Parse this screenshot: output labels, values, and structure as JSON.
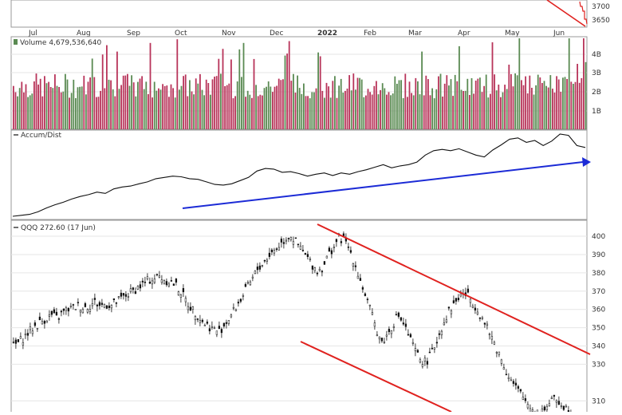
{
  "chart_data": [
    {
      "type": "line",
      "panel": "top-price-strip",
      "y_ticks": [
        "3700",
        "3650"
      ],
      "x_ticks": [
        "Jul",
        "Aug",
        "Sep",
        "Oct",
        "Nov",
        "Dec",
        "2022",
        "Feb",
        "Mar",
        "Apr",
        "May",
        "Jun"
      ],
      "ylim": [
        3630,
        3720
      ]
    },
    {
      "type": "bar",
      "panel": "volume",
      "label": "Volume 4,679,536,640",
      "y_ticks": [
        "4B",
        "3B",
        "2B",
        "1B"
      ],
      "ylim": [
        0,
        4.7
      ],
      "colors": {
        "up": "#5a8a52",
        "down": "#b8345a"
      }
    },
    {
      "type": "line",
      "panel": "accum-dist",
      "label": "Accum/Dist",
      "values": [
        0.0,
        0.3,
        0.6,
        1.4,
        2.6,
        3.6,
        4.4,
        5.4,
        6.2,
        6.8,
        7.6,
        7.2,
        8.6,
        9.2,
        9.5,
        10.2,
        10.8,
        11.8,
        12.2,
        12.6,
        12.4,
        11.8,
        11.6,
        10.8,
        10.0,
        9.8,
        10.2,
        11.2,
        12.2,
        14.2,
        15.0,
        14.8,
        13.8,
        14.0,
        13.4,
        12.6,
        13.2,
        13.6,
        12.8,
        13.6,
        13.2,
        14.0,
        14.6,
        15.4,
        16.2,
        15.2,
        15.8,
        16.2,
        17.0,
        19.2,
        20.6,
        21.0,
        20.6,
        21.2,
        20.2,
        19.2,
        18.6,
        20.8,
        22.4,
        24.2,
        24.6,
        23.2,
        23.8,
        22.2,
        23.6,
        25.8,
        25.4,
        22.2,
        21.6
      ],
      "arrow_color": "#1c2bd6"
    },
    {
      "type": "line",
      "panel": "price",
      "label": "QQQ 272.60 (17 Jun)",
      "y_ticks": [
        "400",
        "390",
        "380",
        "370",
        "360",
        "350",
        "340",
        "330",
        "310"
      ],
      "ylim": [
        304,
        407
      ],
      "values": [
        340,
        342,
        345,
        348,
        351,
        353,
        355,
        357,
        355,
        358,
        360,
        361,
        362,
        361,
        362,
        364,
        362,
        363,
        362,
        364,
        366,
        368,
        370,
        372,
        374,
        376,
        377,
        378,
        376,
        375,
        373,
        369,
        364,
        360,
        357,
        353,
        351,
        349,
        348,
        352,
        356,
        361,
        366,
        371,
        376,
        382,
        385,
        389,
        392,
        395,
        398,
        401,
        397,
        393,
        389,
        385,
        381,
        383,
        389,
        394,
        399,
        398,
        393,
        385,
        376,
        367,
        358,
        349,
        342,
        346,
        352,
        357,
        352,
        345,
        338,
        333,
        331,
        335,
        342,
        350,
        357,
        362,
        366,
        369,
        367,
        363,
        358,
        352,
        346,
        340,
        333,
        326,
        320,
        316,
        312,
        308,
        305,
        304,
        306,
        309,
        311,
        309,
        306,
        305
      ],
      "trendline_color": "#e0221f"
    }
  ]
}
